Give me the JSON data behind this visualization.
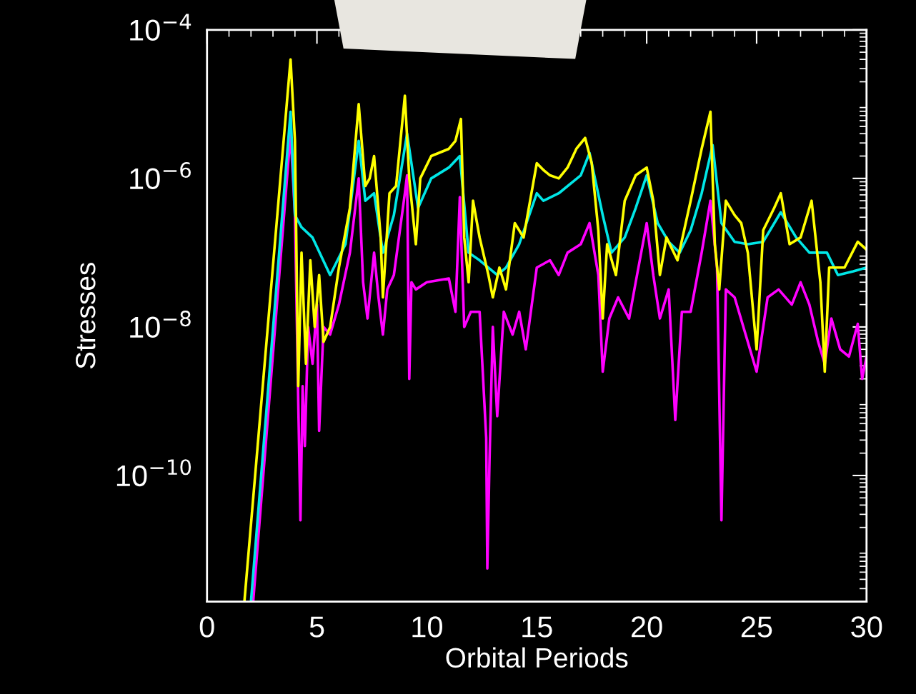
{
  "chart_data": {
    "type": "line",
    "xlabel": "Orbital Periods",
    "ylabel": "Stresses",
    "log": "y",
    "grid": false,
    "legend": false,
    "marker": "none",
    "line_style": "solid",
    "xlim": [
      0,
      30
    ],
    "xticks": [
      0,
      5,
      10,
      15,
      20,
      25,
      30
    ],
    "ylim": [
      2e-12,
      0.0001
    ],
    "yticks": [
      {
        "value": 0.0001,
        "label": "10$^{−4}$"
      },
      {
        "value": 1e-06,
        "label": "10$^{−6}$"
      },
      {
        "value": 1e-08,
        "label": "10$^{−8}$"
      },
      {
        "value": 1e-10,
        "label": "10$^{−10}$"
      }
    ],
    "series": [
      {
        "color": "#ff00ff",
        "x": [
          2.1,
          3.8,
          4.0,
          4.15,
          4.25,
          4.35,
          4.45,
          4.6,
          4.8,
          5.0,
          5.1,
          5.3,
          5.6,
          6.0,
          6.5,
          6.9,
          7.1,
          7.3,
          7.6,
          7.8,
          8.0,
          8.2,
          8.5,
          9.0,
          9.1,
          9.2,
          9.3,
          9.5,
          10.0,
          11.0,
          11.3,
          11.5,
          11.7,
          12.0,
          12.4,
          12.7,
          12.75,
          12.85,
          13.0,
          13.2,
          13.5,
          13.9,
          14.2,
          14.5,
          15.0,
          15.6,
          16.0,
          16.4,
          17.0,
          17.4,
          17.8,
          18.0,
          18.3,
          18.7,
          19.2,
          19.5,
          20.0,
          20.3,
          20.6,
          21.0,
          21.3,
          21.6,
          22.0,
          22.5,
          22.9,
          23.2,
          23.4,
          23.6,
          24.0,
          24.5,
          25.0,
          25.5,
          26.0,
          26.6,
          27.0,
          27.4,
          27.8,
          28.1,
          28.4,
          28.8,
          29.2,
          29.6,
          29.8,
          30.0
        ],
        "values": [
          2e-12,
          4e-06,
          3.2e-07,
          1e-09,
          2.5e-11,
          1.6e-09,
          2.5e-10,
          1e-08,
          3.2e-09,
          2e-08,
          4e-10,
          1e-08,
          7.9e-09,
          2e-08,
          1e-07,
          1e-06,
          4e-08,
          1.3e-08,
          1e-07,
          2.5e-08,
          7.9e-09,
          3.2e-08,
          5e-08,
          6.3e-07,
          1.1e-06,
          2e-09,
          4e-08,
          3.2e-08,
          4e-08,
          4.5e-08,
          1.6e-08,
          5.6e-07,
          1e-08,
          1.6e-08,
          1.6e-08,
          3.2e-10,
          5.6e-12,
          1.6e-10,
          1e-08,
          6.3e-10,
          1.6e-08,
          7.9e-09,
          1.6e-08,
          5e-09,
          6.3e-08,
          7.9e-08,
          5e-08,
          1e-07,
          1.3e-07,
          2.5e-07,
          5e-08,
          2.5e-09,
          1.3e-08,
          2.5e-08,
          1.3e-08,
          4e-08,
          2.5e-07,
          5e-08,
          1.3e-08,
          3.2e-08,
          5.6e-10,
          1.6e-08,
          1.6e-08,
          1e-07,
          5e-07,
          6.3e-08,
          2.5e-11,
          3.2e-08,
          2.5e-08,
          7.9e-09,
          2.5e-09,
          2.5e-08,
          3.2e-08,
          2e-08,
          4e-08,
          2e-08,
          6.3e-09,
          3.2e-09,
          1.3e-08,
          5e-09,
          4e-09,
          1.1e-08,
          2e-09,
          4e-09
        ]
      },
      {
        "color": "#00e6e6",
        "x": [
          2.0,
          3.8,
          4.0,
          4.3,
          4.8,
          5.6,
          6.3,
          6.9,
          7.2,
          7.6,
          8.0,
          8.5,
          9.1,
          9.6,
          10.2,
          11.0,
          11.5,
          11.9,
          12.4,
          13.2,
          13.6,
          14.2,
          15.0,
          15.3,
          16.0,
          17.0,
          17.4,
          18.0,
          18.4,
          19.0,
          19.5,
          20.0,
          20.5,
          21.0,
          21.5,
          22.0,
          22.5,
          23.0,
          23.4,
          24.0,
          24.6,
          25.3,
          26.1,
          26.8,
          27.4,
          28.2,
          28.7,
          29.4,
          30.0
        ],
        "values": [
          2e-12,
          7.9e-06,
          3.2e-07,
          2.2e-07,
          1.6e-07,
          5e-08,
          1.3e-07,
          3.2e-06,
          5e-07,
          6.3e-07,
          1e-07,
          3.2e-07,
          4e-06,
          4e-07,
          1e-06,
          1.4e-06,
          2e-06,
          1e-07,
          7.9e-08,
          5e-08,
          6.3e-08,
          1.3e-07,
          6.3e-07,
          5e-07,
          6.3e-07,
          1.1e-06,
          2.2e-06,
          3.2e-07,
          1e-07,
          1.6e-07,
          4e-07,
          1.1e-06,
          2.5e-07,
          1.4e-07,
          1e-07,
          2e-07,
          6.3e-07,
          2.8e-06,
          2.5e-07,
          1.4e-07,
          1.3e-07,
          1.4e-07,
          3.5e-07,
          1.6e-07,
          1e-07,
          1e-07,
          5e-08,
          5.6e-08,
          6.3e-08
        ]
      },
      {
        "color": "#ffff00",
        "x": [
          1.7,
          3.8,
          4.0,
          4.15,
          4.3,
          4.5,
          4.7,
          4.9,
          5.1,
          5.3,
          5.6,
          6.0,
          6.5,
          6.9,
          7.2,
          7.4,
          7.6,
          7.9,
          8.0,
          8.3,
          8.6,
          9.0,
          9.2,
          9.5,
          9.7,
          10.2,
          11.0,
          11.3,
          11.55,
          11.7,
          11.9,
          12.1,
          12.4,
          12.8,
          13.0,
          13.3,
          13.6,
          14.0,
          14.4,
          15.0,
          15.3,
          15.6,
          16.0,
          16.4,
          16.8,
          17.2,
          17.5,
          17.8,
          18.0,
          18.2,
          18.6,
          19.0,
          19.5,
          20.0,
          20.3,
          20.6,
          20.9,
          21.4,
          22.0,
          22.5,
          22.9,
          23.1,
          23.3,
          23.6,
          24.0,
          24.3,
          24.6,
          25.0,
          25.3,
          25.8,
          26.1,
          26.5,
          27.0,
          27.5,
          27.9,
          28.1,
          28.3,
          29.0,
          29.6,
          30.0
        ],
        "values": [
          2e-12,
          4e-05,
          3.2e-06,
          1.6e-09,
          1e-07,
          3.2e-09,
          7.9e-08,
          1e-08,
          5e-08,
          6.3e-09,
          1e-08,
          6.3e-08,
          4e-07,
          1e-05,
          7.9e-07,
          1e-06,
          2e-06,
          1.6e-07,
          2.5e-08,
          6.3e-07,
          7.9e-07,
          1.3e-05,
          1e-06,
          1.3e-07,
          1e-06,
          2e-06,
          2.5e-06,
          3.2e-06,
          6.3e-06,
          1.6e-07,
          4e-08,
          5e-07,
          1.6e-07,
          5e-08,
          2.5e-08,
          6.3e-08,
          3.2e-08,
          2.5e-07,
          1.6e-07,
          1.6e-06,
          1.3e-06,
          1.1e-06,
          1e-06,
          1.4e-06,
          2.5e-06,
          3.5e-06,
          1.6e-06,
          2e-07,
          1.3e-08,
          1.3e-07,
          5e-08,
          5e-07,
          1.1e-06,
          1.4e-06,
          5e-07,
          5e-08,
          1.6e-07,
          7.9e-08,
          5e-07,
          2.5e-06,
          7.9e-06,
          1.3e-07,
          3.2e-08,
          5e-07,
          3.2e-07,
          2.5e-07,
          1e-07,
          5e-09,
          2e-07,
          4e-07,
          6.3e-07,
          1.3e-07,
          1.6e-07,
          5e-07,
          4e-08,
          2.5e-09,
          6.3e-08,
          6.3e-08,
          1.4e-07,
          1.1e-07
        ]
      }
    ]
  }
}
